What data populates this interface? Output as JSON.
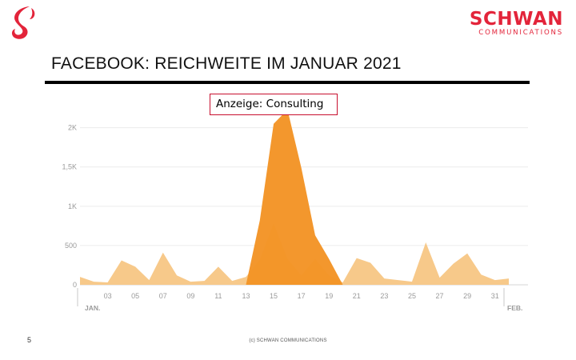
{
  "brand": {
    "name": "SCHWAN",
    "subtitle": "COMMUNICATIONS",
    "color": "#e3243a"
  },
  "slide": {
    "title": "FACEBOOK: REICHWEITE IM JANUAR 2021",
    "page_number": "5"
  },
  "footer": {
    "copyright": "(c) SCHWAN COMMUNICATIONS"
  },
  "annotation": {
    "text": "Anzeige: Consulting"
  },
  "chart_data": {
    "type": "area",
    "title": "",
    "xlabel": "",
    "ylabel": "",
    "ylim": [
      0,
      2200
    ],
    "yticks": [
      0,
      500,
      1000,
      1500,
      2000
    ],
    "ytick_labels": [
      "0",
      "500",
      "1K",
      "1,5K",
      "2K"
    ],
    "x": [
      "01",
      "02",
      "03",
      "04",
      "05",
      "06",
      "07",
      "08",
      "09",
      "10",
      "11",
      "12",
      "13",
      "14",
      "15",
      "16",
      "17",
      "18",
      "19",
      "20",
      "21",
      "22",
      "23",
      "24",
      "25",
      "26",
      "27",
      "28",
      "29",
      "30",
      "31",
      "01"
    ],
    "xtick_labels": [
      "03",
      "05",
      "07",
      "09",
      "11",
      "13",
      "15",
      "17",
      "19",
      "21",
      "23",
      "25",
      "27",
      "29",
      "31"
    ],
    "month_labels": {
      "start": "JAN.",
      "end": "FEB."
    },
    "grid": true,
    "series": [
      {
        "name": "",
        "color": "#f7c98a",
        "values": [
          100,
          40,
          30,
          310,
          230,
          60,
          410,
          120,
          40,
          50,
          230,
          50,
          100,
          320,
          780,
          330,
          120,
          330,
          120,
          30,
          340,
          280,
          80,
          60,
          40,
          540,
          90,
          270,
          400,
          130,
          60,
          80
        ]
      },
      {
        "name": "",
        "color": "#f39426",
        "values": [
          0,
          0,
          0,
          0,
          0,
          0,
          0,
          0,
          0,
          0,
          0,
          0,
          0,
          820,
          2050,
          2230,
          1490,
          630,
          330,
          0,
          0,
          0,
          0,
          0,
          0,
          0,
          0,
          0,
          0,
          0,
          0,
          0
        ]
      }
    ]
  }
}
